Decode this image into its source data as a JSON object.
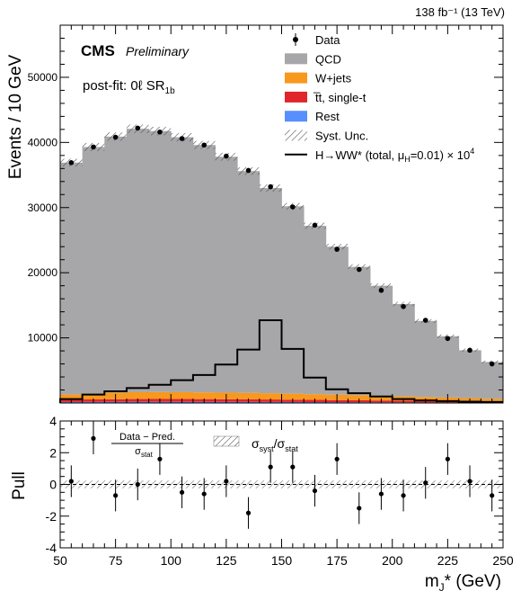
{
  "lumi": "138 fb⁻¹ (13 TeV)",
  "cms": "CMS",
  "preliminary": "Preliminary",
  "region": {
    "prefix": "post-fit: 0ℓ   SR",
    "sub": "1b"
  },
  "ylabel_main": "Events / 10 GeV",
  "ylabel_pull": "Pull",
  "xlabel": {
    "main": "m",
    "sub": "J",
    "tail": "* (GeV)"
  },
  "legend": [
    {
      "key": "data",
      "label": "Data",
      "style": "marker"
    },
    {
      "key": "qcd",
      "label": "QCD",
      "style": "fill",
      "color": "#a7a7aa"
    },
    {
      "key": "wjets",
      "label": "W+jets",
      "style": "fill",
      "color": "#f8981d"
    },
    {
      "key": "top",
      "label": "t̅t, single-t",
      "style": "fill",
      "color": "#e0252b"
    },
    {
      "key": "rest",
      "label": "Rest",
      "style": "fill",
      "color": "#5790fc"
    },
    {
      "key": "syst",
      "label": "Syst. Unc.",
      "style": "hatch"
    },
    {
      "key": "signal",
      "label": "H→WW* (total, μ",
      "label_sub": "H",
      "label_tail": "=0.01) × 10",
      "label_sup": "4",
      "style": "line"
    }
  ],
  "pull_legend": {
    "frac_num": "Data − Pred.",
    "frac_den": "σ",
    "frac_den_sub": "stat",
    "ratio": "σ",
    "ratio_sub1": "syst",
    "ratio_mid": "/σ",
    "ratio_sub2": "stat"
  },
  "chart_data": [
    {
      "type": "bar",
      "stacked": true,
      "x_bin_edges": [
        50,
        60,
        70,
        80,
        90,
        100,
        110,
        120,
        130,
        140,
        150,
        160,
        170,
        180,
        190,
        200,
        210,
        220,
        230,
        240,
        250
      ],
      "x_bin_centers": [
        55,
        65,
        75,
        85,
        95,
        105,
        115,
        125,
        135,
        145,
        155,
        165,
        175,
        185,
        195,
        205,
        215,
        225,
        235,
        245
      ],
      "xlim": [
        50,
        250
      ],
      "ylim": [
        0,
        58000
      ],
      "y_ticks": [
        10000,
        20000,
        30000,
        40000,
        50000
      ],
      "x_ticks": [
        50,
        75,
        100,
        125,
        150,
        175,
        200,
        225,
        250
      ],
      "series": [
        {
          "name": "Rest",
          "color": "#5790fc",
          "values": [
            150,
            170,
            180,
            190,
            190,
            185,
            180,
            175,
            170,
            160,
            150,
            140,
            130,
            120,
            110,
            100,
            90,
            80,
            70,
            60
          ]
        },
        {
          "name": "t̅t, single-t",
          "color": "#e0252b",
          "values": [
            350,
            380,
            400,
            420,
            430,
            430,
            420,
            410,
            400,
            380,
            360,
            340,
            320,
            300,
            280,
            260,
            240,
            220,
            200,
            180
          ]
        },
        {
          "name": "W+jets",
          "color": "#f8981d",
          "values": [
            800,
            900,
            1000,
            1050,
            1060,
            1050,
            1030,
            1010,
            990,
            960,
            920,
            880,
            830,
            780,
            720,
            660,
            600,
            540,
            480,
            420
          ]
        },
        {
          "name": "QCD",
          "color": "#a7a7aa",
          "values": [
            35600,
            37850,
            39320,
            40440,
            40070,
            39135,
            37970,
            36205,
            34040,
            31500,
            28770,
            25840,
            22720,
            19700,
            16890,
            14180,
            11670,
            9410,
            7350,
            5640
          ]
        }
      ],
      "data": {
        "name": "Data",
        "values": [
          36900,
          39300,
          40800,
          42200,
          41600,
          40600,
          39600,
          37900,
          35700,
          33200,
          30100,
          27300,
          23600,
          20500,
          17300,
          14800,
          12700,
          9900,
          8100,
          6000
        ]
      },
      "signal": {
        "name": "H→WW* (total, μH=0.01) × 10^4",
        "values": [
          600,
          1300,
          1800,
          2300,
          2800,
          3500,
          4300,
          5900,
          8200,
          12700,
          8300,
          3900,
          2100,
          1500,
          1000,
          600,
          400,
          300,
          200,
          150
        ]
      },
      "ylabel": "Events / 10 GeV"
    },
    {
      "type": "scatter",
      "x": [
        55,
        65,
        75,
        85,
        95,
        105,
        115,
        125,
        135,
        145,
        155,
        165,
        175,
        185,
        195,
        205,
        215,
        225,
        235,
        245
      ],
      "y": [
        0.2,
        2.9,
        -0.7,
        0.0,
        1.6,
        -0.5,
        -0.6,
        0.2,
        -1.8,
        1.1,
        1.1,
        -0.4,
        1.6,
        -1.5,
        -0.6,
        -0.7,
        0.1,
        1.6,
        0.2,
        -0.7
      ],
      "yerr": 1.0,
      "ylim": [
        -4,
        4
      ],
      "y_ticks": [
        -4,
        -2,
        0,
        2,
        4
      ],
      "x_ticks": [
        50,
        75,
        100,
        125,
        150,
        175,
        200,
        225,
        250
      ],
      "xlabel": "mJ* (GeV)",
      "ylabel": "Pull"
    }
  ]
}
